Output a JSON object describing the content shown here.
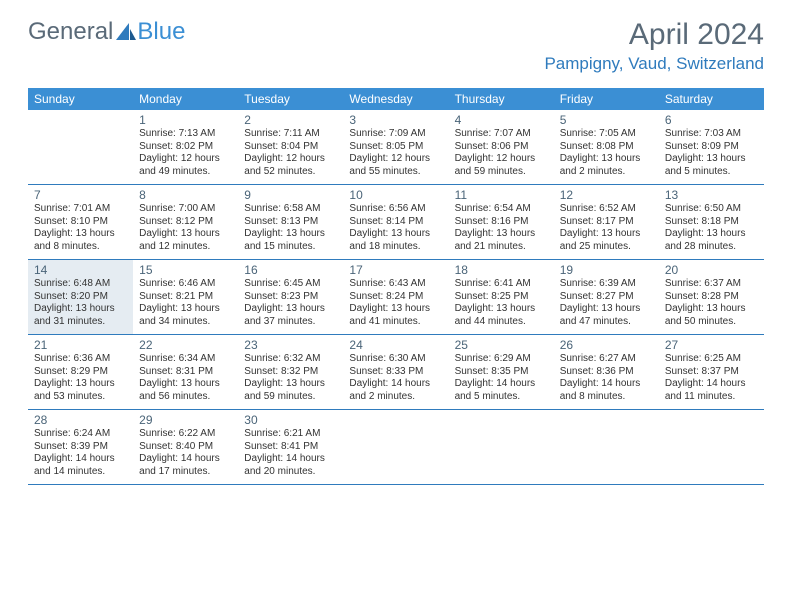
{
  "logo": {
    "part1": "General",
    "part2": "Blue"
  },
  "title": "April 2024",
  "location": "Pampigny, Vaud, Switzerland",
  "colors": {
    "header_bg": "#3b8fd4",
    "header_text": "#ffffff",
    "title_color": "#5a6a78",
    "location_color": "#2f7bbd",
    "border_color": "#2f7bbd",
    "today_bg": "#e5ecf2",
    "text_color": "#333333"
  },
  "day_headers": [
    "Sunday",
    "Monday",
    "Tuesday",
    "Wednesday",
    "Thursday",
    "Friday",
    "Saturday"
  ],
  "today_date": 14,
  "start_weekday": 1,
  "days": [
    {
      "n": 1,
      "sr": "7:13 AM",
      "ss": "8:02 PM",
      "dl": "12 hours and 49 minutes."
    },
    {
      "n": 2,
      "sr": "7:11 AM",
      "ss": "8:04 PM",
      "dl": "12 hours and 52 minutes."
    },
    {
      "n": 3,
      "sr": "7:09 AM",
      "ss": "8:05 PM",
      "dl": "12 hours and 55 minutes."
    },
    {
      "n": 4,
      "sr": "7:07 AM",
      "ss": "8:06 PM",
      "dl": "12 hours and 59 minutes."
    },
    {
      "n": 5,
      "sr": "7:05 AM",
      "ss": "8:08 PM",
      "dl": "13 hours and 2 minutes."
    },
    {
      "n": 6,
      "sr": "7:03 AM",
      "ss": "8:09 PM",
      "dl": "13 hours and 5 minutes."
    },
    {
      "n": 7,
      "sr": "7:01 AM",
      "ss": "8:10 PM",
      "dl": "13 hours and 8 minutes."
    },
    {
      "n": 8,
      "sr": "7:00 AM",
      "ss": "8:12 PM",
      "dl": "13 hours and 12 minutes."
    },
    {
      "n": 9,
      "sr": "6:58 AM",
      "ss": "8:13 PM",
      "dl": "13 hours and 15 minutes."
    },
    {
      "n": 10,
      "sr": "6:56 AM",
      "ss": "8:14 PM",
      "dl": "13 hours and 18 minutes."
    },
    {
      "n": 11,
      "sr": "6:54 AM",
      "ss": "8:16 PM",
      "dl": "13 hours and 21 minutes."
    },
    {
      "n": 12,
      "sr": "6:52 AM",
      "ss": "8:17 PM",
      "dl": "13 hours and 25 minutes."
    },
    {
      "n": 13,
      "sr": "6:50 AM",
      "ss": "8:18 PM",
      "dl": "13 hours and 28 minutes."
    },
    {
      "n": 14,
      "sr": "6:48 AM",
      "ss": "8:20 PM",
      "dl": "13 hours and 31 minutes."
    },
    {
      "n": 15,
      "sr": "6:46 AM",
      "ss": "8:21 PM",
      "dl": "13 hours and 34 minutes."
    },
    {
      "n": 16,
      "sr": "6:45 AM",
      "ss": "8:23 PM",
      "dl": "13 hours and 37 minutes."
    },
    {
      "n": 17,
      "sr": "6:43 AM",
      "ss": "8:24 PM",
      "dl": "13 hours and 41 minutes."
    },
    {
      "n": 18,
      "sr": "6:41 AM",
      "ss": "8:25 PM",
      "dl": "13 hours and 44 minutes."
    },
    {
      "n": 19,
      "sr": "6:39 AM",
      "ss": "8:27 PM",
      "dl": "13 hours and 47 minutes."
    },
    {
      "n": 20,
      "sr": "6:37 AM",
      "ss": "8:28 PM",
      "dl": "13 hours and 50 minutes."
    },
    {
      "n": 21,
      "sr": "6:36 AM",
      "ss": "8:29 PM",
      "dl": "13 hours and 53 minutes."
    },
    {
      "n": 22,
      "sr": "6:34 AM",
      "ss": "8:31 PM",
      "dl": "13 hours and 56 minutes."
    },
    {
      "n": 23,
      "sr": "6:32 AM",
      "ss": "8:32 PM",
      "dl": "13 hours and 59 minutes."
    },
    {
      "n": 24,
      "sr": "6:30 AM",
      "ss": "8:33 PM",
      "dl": "14 hours and 2 minutes."
    },
    {
      "n": 25,
      "sr": "6:29 AM",
      "ss": "8:35 PM",
      "dl": "14 hours and 5 minutes."
    },
    {
      "n": 26,
      "sr": "6:27 AM",
      "ss": "8:36 PM",
      "dl": "14 hours and 8 minutes."
    },
    {
      "n": 27,
      "sr": "6:25 AM",
      "ss": "8:37 PM",
      "dl": "14 hours and 11 minutes."
    },
    {
      "n": 28,
      "sr": "6:24 AM",
      "ss": "8:39 PM",
      "dl": "14 hours and 14 minutes."
    },
    {
      "n": 29,
      "sr": "6:22 AM",
      "ss": "8:40 PM",
      "dl": "14 hours and 17 minutes."
    },
    {
      "n": 30,
      "sr": "6:21 AM",
      "ss": "8:41 PM",
      "dl": "14 hours and 20 minutes."
    }
  ],
  "labels": {
    "sunrise": "Sunrise:",
    "sunset": "Sunset:",
    "daylight": "Daylight:"
  }
}
